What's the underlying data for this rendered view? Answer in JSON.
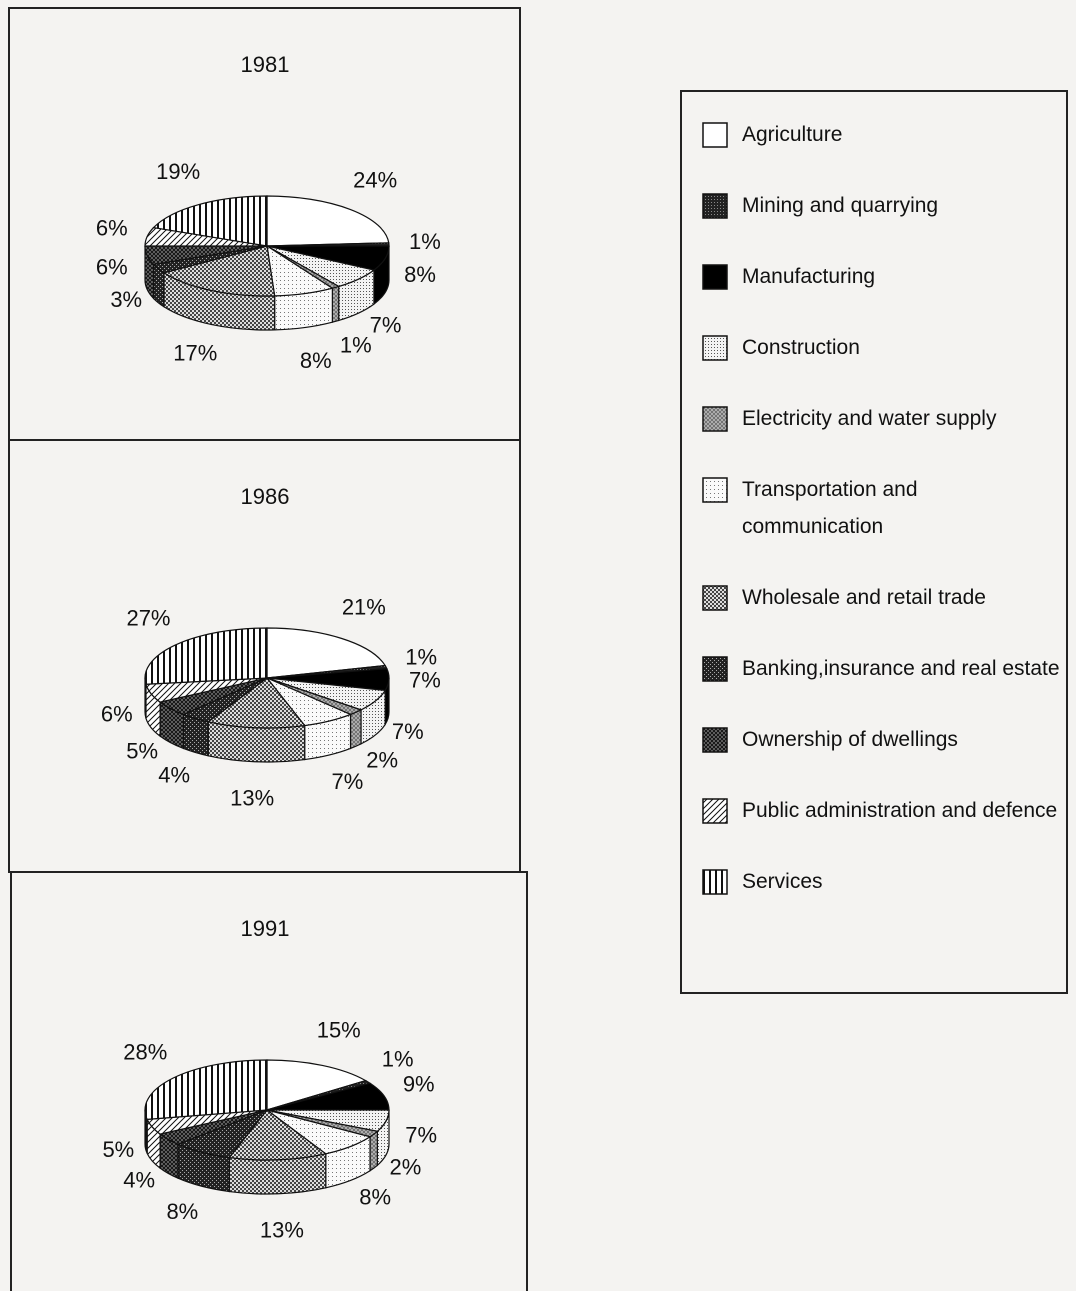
{
  "legend": [
    "Agriculture",
    "Mining and quarrying",
    "Manufacturing",
    "Construction",
    "Electricity and water supply",
    "Transportation and communication",
    "Wholesale and retail trade",
    "Banking,insurance and real estate",
    "Ownership of dwellings",
    "Public administration and defence",
    "Services"
  ],
  "chart_data": [
    {
      "type": "pie",
      "title": "1981",
      "values": [
        24,
        1,
        8,
        7,
        1,
        8,
        17,
        3,
        6,
        6,
        19
      ],
      "value_labels": [
        "24%",
        "1%",
        "8%",
        "7%",
        "1%",
        "8%",
        "17%",
        "3%",
        "6%",
        "6%",
        "19%"
      ]
    },
    {
      "type": "pie",
      "title": "1986",
      "values": [
        21,
        1,
        7,
        7,
        2,
        7,
        13,
        4,
        5,
        6,
        27
      ],
      "value_labels": [
        "21%",
        "1%",
        "7%",
        "7%",
        "2%",
        "7%",
        "13%",
        "4%",
        "5%",
        "6%",
        "27%"
      ]
    },
    {
      "type": "pie",
      "title": "1991",
      "values": [
        15,
        1,
        9,
        7,
        2,
        8,
        13,
        8,
        4,
        5,
        28
      ],
      "value_labels": [
        "15%",
        "1%",
        "9%",
        "7%",
        "2%",
        "8%",
        "13%",
        "8%",
        "4%",
        "5%",
        "28%"
      ]
    }
  ]
}
